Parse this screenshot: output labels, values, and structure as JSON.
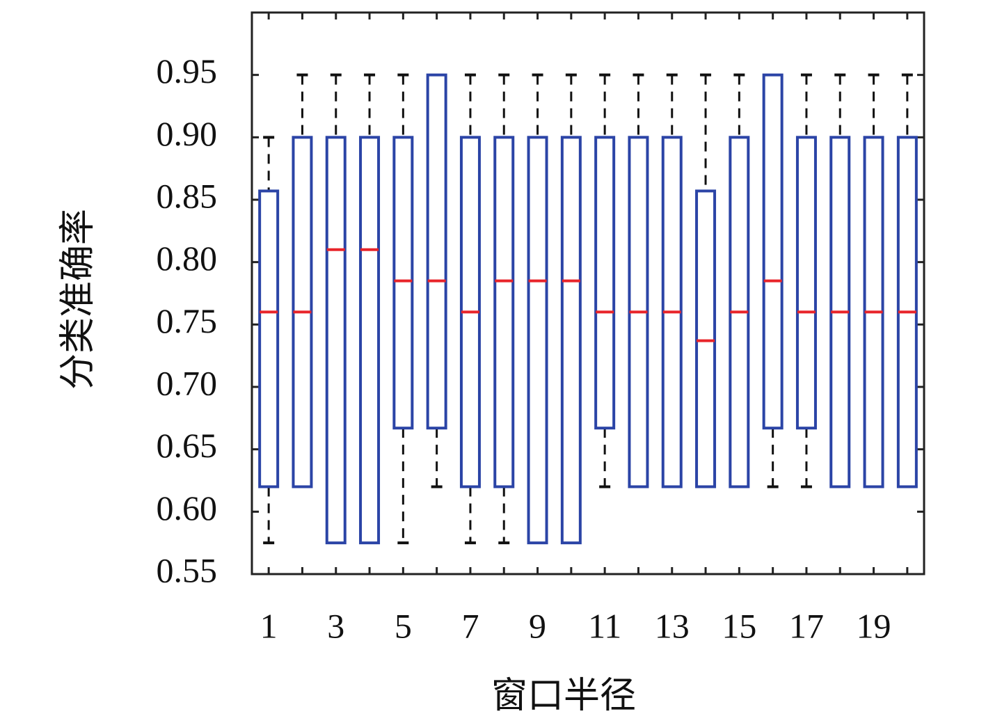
{
  "chart_data": {
    "type": "box",
    "x_label": "窗口半径",
    "y_label": "分类准确率",
    "categories": [
      "1",
      null,
      "3",
      null,
      "5",
      null,
      "7",
      null,
      "9",
      null,
      "11",
      null,
      "13",
      null,
      "15",
      null,
      "17",
      null,
      "19",
      null
    ],
    "low": [
      0.575,
      0.62,
      0.575,
      0.575,
      0.575,
      0.62,
      0.575,
      0.575,
      0.575,
      0.575,
      0.62,
      0.62,
      0.62,
      0.62,
      0.62,
      0.62,
      0.62,
      0.62,
      0.62,
      0.62
    ],
    "q1": [
      0.62,
      0.62,
      0.575,
      0.575,
      0.667,
      0.667,
      0.62,
      0.62,
      0.575,
      0.575,
      0.667,
      0.62,
      0.62,
      0.62,
      0.62,
      0.667,
      0.667,
      0.62,
      0.62,
      0.62
    ],
    "median": [
      0.76,
      0.76,
      0.81,
      0.81,
      0.785,
      0.785,
      0.76,
      0.785,
      0.785,
      0.785,
      0.76,
      0.76,
      0.76,
      0.737,
      0.76,
      0.785,
      0.76,
      0.76,
      0.76,
      0.76
    ],
    "q3": [
      0.857,
      0.9,
      0.9,
      0.9,
      0.9,
      0.95,
      0.9,
      0.9,
      0.9,
      0.9,
      0.9,
      0.9,
      0.9,
      0.857,
      0.9,
      0.95,
      0.9,
      0.9,
      0.9,
      0.9
    ],
    "high": [
      0.9,
      0.95,
      0.95,
      0.95,
      0.95,
      0.95,
      0.95,
      0.95,
      0.95,
      0.95,
      0.95,
      0.95,
      0.95,
      0.95,
      0.95,
      0.95,
      0.95,
      0.95,
      0.95,
      0.95
    ],
    "box_color": "#2b44a6",
    "median_color": "#e8242a",
    "whisker_color": "#111111",
    "ylim": [
      0.55,
      1.0
    ],
    "yticks": [
      0.55,
      {
        "value": 0.6,
        "label": "0.60"
      },
      0.65,
      {
        "value": 0.7,
        "label": "0.70"
      },
      0.75,
      {
        "value": 0.8,
        "label": "0.80"
      },
      0.85,
      {
        "value": 0.9,
        "label": "0.90"
      },
      0.95
    ]
  }
}
